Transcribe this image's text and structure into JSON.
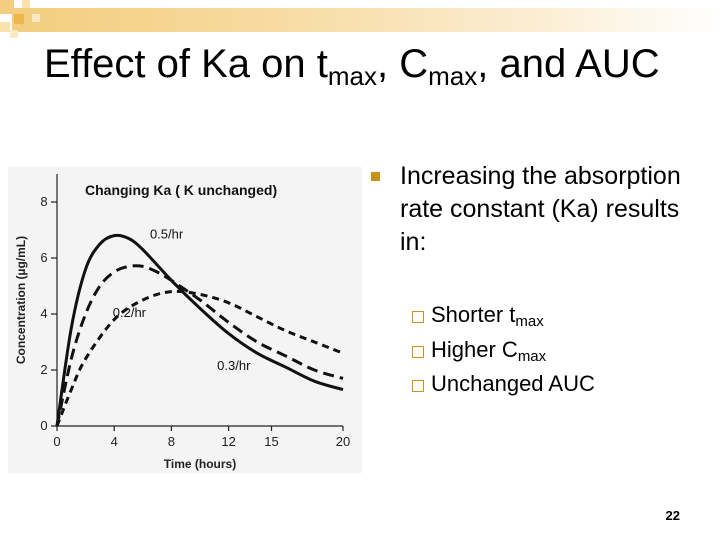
{
  "slide": {
    "title": {
      "prefix": "Effect of Ka on t",
      "sub1": "max",
      "mid": ", C",
      "sub2": "max",
      "suffix": ", and AUC"
    },
    "page_number": "22",
    "colors": {
      "accent": "#c9921c",
      "top_bar": "#f4cd7e",
      "chart_bg": "#f4f4f4"
    }
  },
  "bullets": {
    "main": "Increasing the absorption rate constant (Ka) results in:",
    "sub": [
      {
        "text": "Shorter t",
        "subscript": "max"
      },
      {
        "text": "Higher C",
        "subscript": "max"
      },
      {
        "text": "Unchanged AUC",
        "subscript": ""
      }
    ]
  },
  "chart_data": {
    "type": "line",
    "title": "Changing Ka ( K unchanged)",
    "xlabel": "Time (hours)",
    "ylabel": "Concentration (µg/mL)",
    "xlim": [
      0,
      20
    ],
    "ylim": [
      0,
      9
    ],
    "xticks": [
      0,
      4,
      8,
      12,
      15,
      20
    ],
    "yticks": [
      0,
      2,
      4,
      6,
      8
    ],
    "grid": false,
    "legend": "none",
    "series": [
      {
        "name": "0.5/hr",
        "style": "solid",
        "x": [
          0,
          1,
          2,
          3,
          4,
          5,
          6,
          8,
          10,
          12,
          14,
          16,
          18,
          20
        ],
        "y": [
          0,
          3.5,
          5.6,
          6.5,
          6.8,
          6.7,
          6.3,
          5.2,
          4.2,
          3.3,
          2.6,
          2.1,
          1.6,
          1.3
        ]
      },
      {
        "name": "",
        "style": "long-dash",
        "x": [
          0,
          1,
          2,
          3,
          4,
          5,
          6,
          7,
          8,
          10,
          12,
          14,
          16,
          18,
          20
        ],
        "y": [
          0,
          2.4,
          4.0,
          5.0,
          5.5,
          5.7,
          5.7,
          5.5,
          5.2,
          4.5,
          3.7,
          3.0,
          2.5,
          2.0,
          1.7
        ]
      },
      {
        "name": "0.2/hr",
        "style": "short-dash",
        "x": [
          0,
          1,
          2,
          4,
          6,
          8,
          10,
          12,
          14,
          16,
          18,
          20
        ],
        "y": [
          0,
          1.3,
          2.4,
          3.8,
          4.5,
          4.8,
          4.7,
          4.4,
          3.9,
          3.4,
          3.0,
          2.6
        ]
      }
    ],
    "annotations": [
      {
        "text": "0.5/hr",
        "x": 6.5,
        "y": 6.7
      },
      {
        "text": "0.2/hr",
        "x": 3.9,
        "y": 3.9
      },
      {
        "text": "0.3/hr",
        "x": 11.2,
        "y": 2.0
      }
    ]
  }
}
